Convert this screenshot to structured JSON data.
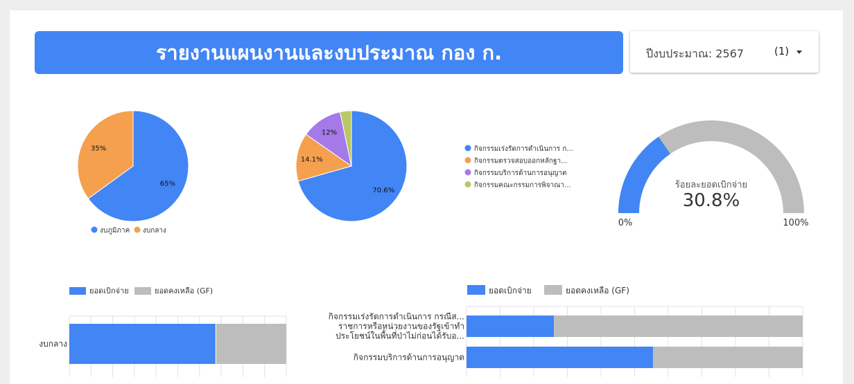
{
  "header": {
    "title": "รายงานแผนงานและงบประมาณ กอง ก."
  },
  "filter": {
    "label": "ปีงบประมาณ:",
    "value": "2567",
    "count": "(1)"
  },
  "colors": {
    "blue": "#4285f4",
    "orange": "#f4a04f",
    "purple": "#a57ae8",
    "olive": "#b9c765",
    "gray": "#bdbdbd"
  },
  "chart_data": [
    {
      "type": "pie",
      "categories": [
        "งบภูมิภาค",
        "งบกลาง"
      ],
      "values": [
        65,
        35
      ],
      "labels": [
        "65%",
        "35%"
      ],
      "legend_position": "bottom"
    },
    {
      "type": "pie",
      "categories": [
        "กิจกรรมเร่งรัดการดำเนินการ ก...",
        "กิจกรรมตรวจสอบออกหลักฐา...",
        "กิจกรรมบริการด้านการอนุญาต",
        "กิจกรรมคณะกรรมการพิจาณา..."
      ],
      "values": [
        70.6,
        14.1,
        12,
        3.3
      ],
      "labels": [
        "70.6%",
        "14.1%",
        "12%",
        ""
      ],
      "legend_position": "right"
    },
    {
      "type": "gauge",
      "label": "ร้อยละยอดเบิกจ่าย",
      "value": 30.8,
      "value_text": "30.8%",
      "min_label": "0%",
      "max_label": "100%"
    },
    {
      "type": "bar",
      "orientation": "horizontal",
      "stacked": true,
      "categories": [
        "งบกลาง"
      ],
      "series": [
        {
          "name": "ยอดเบิกจ่าย",
          "values": [
            67.5
          ]
        },
        {
          "name": "ยอดคงเหลือ (GF)",
          "values": [
            32.5
          ]
        }
      ],
      "legend_position": "top",
      "grid": true
    },
    {
      "type": "bar",
      "orientation": "horizontal",
      "stacked": true,
      "categories": [
        [
          "กิจกรรมเร่งรัดการดำเนินการ กรณีส...",
          "ราชการหรือหน่วยงานของรัฐเข้าทำ",
          "ประโยชน์ในพื้นที่ป่าไม่ก่อนได้รับอ..."
        ],
        [
          "กิจกรรมบริการด้านการอนุญาต"
        ]
      ],
      "series": [
        {
          "name": "ยอดเบิกจ่าย",
          "values": [
            26,
            55.5
          ]
        },
        {
          "name": "ยอดคงเหลือ (GF)",
          "values": [
            74,
            44.5
          ]
        }
      ],
      "legend_position": "top",
      "grid": true
    }
  ]
}
